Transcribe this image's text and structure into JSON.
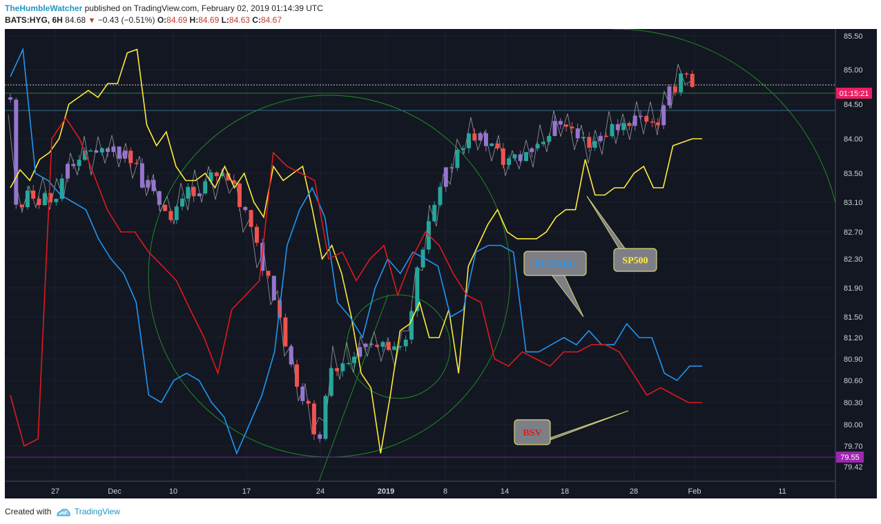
{
  "header": {
    "author": "TheHumbleWatcher",
    "published": "published on TradingView.com, February 02, 2019 01:14:39 UTC",
    "symbol": "BATS:HYG, 6H",
    "last": "84.68",
    "change": "−0.43 (−0.51%)",
    "o_label": "O:",
    "o_value": "84.69",
    "h_label": "H:",
    "h_value": "84.69",
    "l_label": "L:",
    "l_value": "84.63",
    "c_label": "C:",
    "c_value": "84.67"
  },
  "footer": {
    "created_with": "Created with",
    "brand": "TradingView"
  },
  "colors": {
    "background": "#131722",
    "grid": "#1e2230",
    "sp500": "#ffeb3b",
    "bchabc": "#2196f3",
    "bsv": "#e0191e",
    "candle_up": "#26a69a",
    "candle_down": "#ef5350",
    "candle_purple": "#9575cd",
    "circle": "#1f8b24",
    "time_badge": "#e91e63",
    "low_badge": "#9c27b0"
  },
  "chart_data": {
    "type": "line",
    "price_axis_ticks": [
      "85.50",
      "85.00",
      "84.50",
      "84.00",
      "83.50",
      "83.10",
      "82.70",
      "82.30",
      "81.90",
      "81.50",
      "81.20",
      "80.90",
      "80.60",
      "80.30",
      "80.00",
      "79.70",
      "79.42"
    ],
    "time_axis_ticks": [
      "27",
      "Dec",
      "10",
      "17",
      "24",
      "2019",
      "8",
      "14",
      "18",
      "28",
      "Feb",
      "11"
    ],
    "current_time_badge": "01:15:21",
    "low_badge": "79.55",
    "annotations": {
      "bchabc": "BCHABC",
      "sp500": "SP500",
      "bsv": "BSV"
    },
    "series": [
      {
        "name": "SP500",
        "values": [
          83.3,
          83.55,
          83.4,
          83.7,
          83.8,
          84.0,
          84.5,
          84.6,
          84.7,
          84.6,
          84.8,
          84.8,
          85.25,
          85.3,
          84.2,
          83.9,
          84.1,
          83.6,
          83.4,
          83.4,
          83.5,
          83.3,
          83.6,
          83.3,
          83.5,
          83.1,
          82.9,
          83.6,
          83.4,
          83.5,
          83.6,
          83.0,
          82.3,
          82.5,
          82.1,
          81.5,
          80.7,
          80.5,
          79.6,
          80.4,
          81.3,
          81.4,
          81.7,
          81.2,
          81.2,
          81.6,
          80.7,
          82.2,
          82.5,
          82.8,
          83.0,
          82.7,
          82.6,
          82.6,
          82.6,
          82.7,
          82.9,
          83.0,
          83.0,
          83.7,
          83.2,
          83.2,
          83.3,
          83.3,
          83.5,
          83.6,
          83.3,
          83.3,
          83.9,
          83.95,
          84.0,
          84.0
        ]
      },
      {
        "name": "BCHABC",
        "values": [
          84.9,
          85.3,
          83.5,
          83.4,
          83.2,
          83.1,
          83.0,
          82.6,
          82.3,
          82.1,
          81.7,
          80.4,
          80.3,
          80.6,
          80.7,
          80.6,
          80.3,
          80.1,
          79.6,
          80.0,
          80.4,
          81.0,
          82.5,
          83.0,
          83.3,
          82.9,
          81.7,
          81.5,
          81.2,
          81.9,
          82.3,
          82.1,
          82.4,
          82.3,
          82.2,
          81.5,
          81.6,
          82.4,
          82.5,
          82.5,
          82.4,
          81.0,
          81.0,
          81.1,
          81.2,
          81.1,
          81.3,
          81.1,
          81.1,
          81.4,
          81.2,
          81.2,
          80.7,
          80.6,
          80.8,
          80.8
        ]
      },
      {
        "name": "BSV",
        "values": [
          80.4,
          79.7,
          79.8,
          84.0,
          84.3,
          84.0,
          83.5,
          83.0,
          82.7,
          82.7,
          82.4,
          82.2,
          82.0,
          81.6,
          81.2,
          80.7,
          81.6,
          81.8,
          82.0,
          83.8,
          83.6,
          83.5,
          83.4,
          82.3,
          82.4,
          82.0,
          82.3,
          82.5,
          81.8,
          82.3,
          82.7,
          82.5,
          82.1,
          81.8,
          81.7,
          80.9,
          80.8,
          81.0,
          80.9,
          80.8,
          81.0,
          81.0,
          81.1,
          81.1,
          81.0,
          80.7,
          80.4,
          80.5,
          80.4,
          80.3,
          80.3
        ]
      }
    ]
  }
}
